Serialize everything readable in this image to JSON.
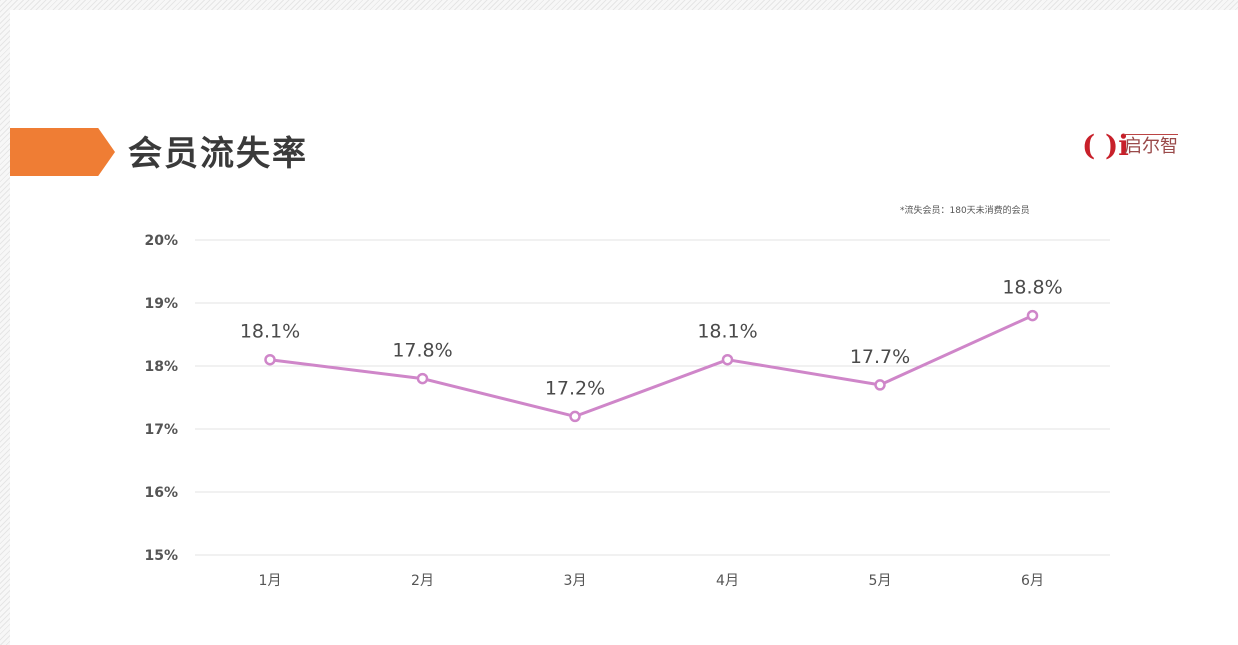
{
  "slide": {
    "title": "会员流失率",
    "logo_mark": "( )i",
    "logo_text": "启尔智",
    "note": "*流失会员：180天未消费的会员"
  },
  "colors": {
    "accent": "#ef7d34",
    "line": "#cf86c9",
    "grid": "#e3e3e3",
    "logo": "#c8202a"
  },
  "chart_data": {
    "type": "line",
    "title": "会员流失率",
    "xlabel": "",
    "ylabel": "",
    "categories": [
      "1月",
      "2月",
      "3月",
      "4月",
      "5月",
      "6月"
    ],
    "series": [
      {
        "values": [
          18.1,
          17.8,
          17.2,
          18.1,
          17.7,
          18.8
        ]
      }
    ],
    "data_labels": [
      "18.1%",
      "17.8%",
      "17.2%",
      "18.1%",
      "17.7%",
      "18.8%"
    ],
    "y_ticks": [
      "15%",
      "16%",
      "17%",
      "18%",
      "19%",
      "20%"
    ],
    "ylim": [
      15,
      20
    ],
    "grid": true,
    "legend": "none"
  }
}
